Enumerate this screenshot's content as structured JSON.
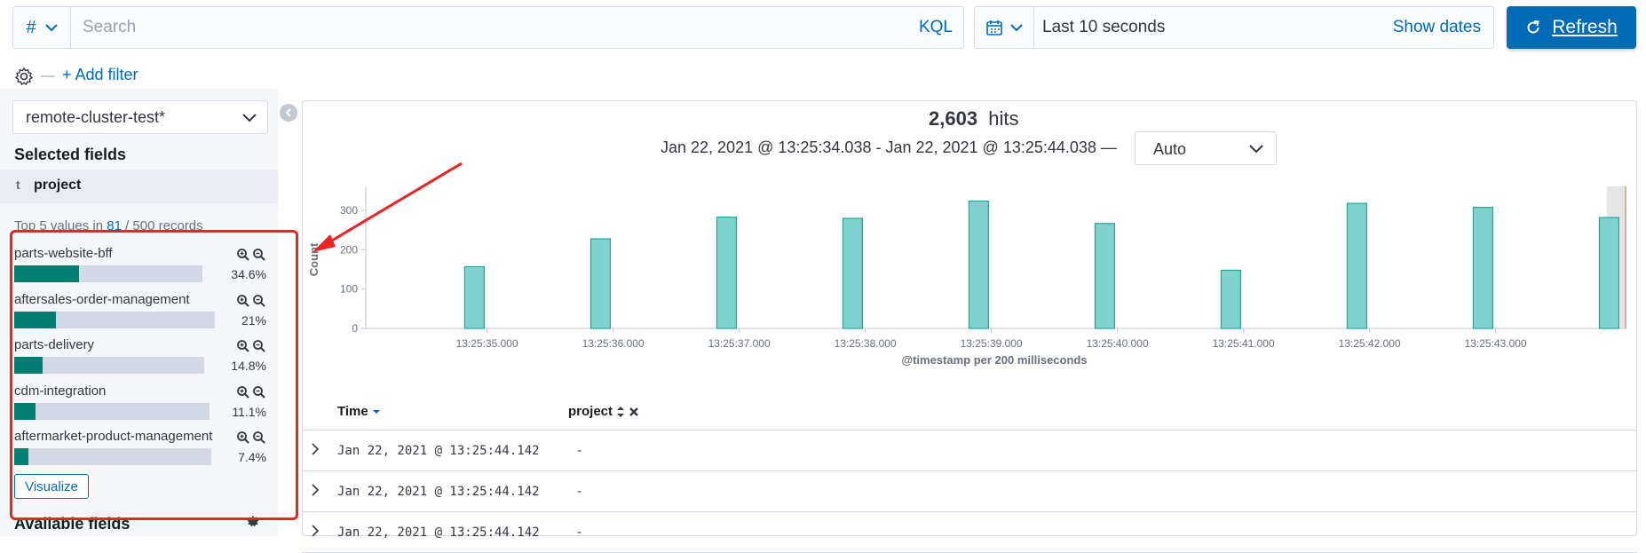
{
  "querybar": {
    "type_symbol": "#",
    "search_placeholder": "Search",
    "language": "KQL"
  },
  "datebar": {
    "label": "Last 10 seconds",
    "show_dates": "Show dates"
  },
  "refresh_button": {
    "label": "Refresh"
  },
  "filters": {
    "add_filter": "+ Add filter"
  },
  "sidebar": {
    "index_pattern": "remote-cluster-test*",
    "selected_fields_heading": "Selected fields",
    "selected_field": {
      "type": "t",
      "name": "project"
    },
    "top_values": {
      "prefix": "Top 5 values in ",
      "count": "81",
      "suffix": " / 500 records"
    },
    "values": [
      {
        "label": "parts-website-bff",
        "percent": "34.6%",
        "fraction": 0.346
      },
      {
        "label": "aftersales-order-management",
        "percent": "21%",
        "fraction": 0.21
      },
      {
        "label": "parts-delivery",
        "percent": "14.8%",
        "fraction": 0.148
      },
      {
        "label": "cdm-integration",
        "percent": "11.1%",
        "fraction": 0.111
      },
      {
        "label": "aftermarket-product-management",
        "percent": "7.4%",
        "fraction": 0.074
      }
    ],
    "visualize_label": "Visualize",
    "available_fields_heading": "Available fields"
  },
  "main": {
    "hits_count": "2,603",
    "hits_label": "hits",
    "date_range": "Jan 22, 2021 @ 13:25:34.038 - Jan 22, 2021 @ 13:25:44.038 —",
    "interval": "Auto",
    "table": {
      "headers": {
        "time": "Time",
        "project": "project"
      },
      "rows": [
        {
          "time": "Jan 22, 2021 @ 13:25:44.142",
          "project": "-"
        },
        {
          "time": "Jan 22, 2021 @ 13:25:44.142",
          "project": "-"
        },
        {
          "time": "Jan 22, 2021 @ 13:25:44.142",
          "project": "-"
        }
      ]
    }
  },
  "chart_data": {
    "type": "bar",
    "xlabel": "@timestamp per 200 milliseconds",
    "ylabel": "Count",
    "ylim": [
      0,
      350
    ],
    "yticks": [
      0,
      100,
      200,
      300
    ],
    "xticks": [
      "13:25:35.000",
      "13:25:36.000",
      "13:25:37.000",
      "13:25:38.000",
      "13:25:39.000",
      "13:25:40.000",
      "13:25:41.000",
      "13:25:42.000",
      "13:25:43.000"
    ],
    "bars": [
      {
        "t": "13:25:34.800",
        "value": 157
      },
      {
        "t": "13:25:35.800",
        "value": 228
      },
      {
        "t": "13:25:36.800",
        "value": 283
      },
      {
        "t": "13:25:37.800",
        "value": 280
      },
      {
        "t": "13:25:38.800",
        "value": 324
      },
      {
        "t": "13:25:39.800",
        "value": 267
      },
      {
        "t": "13:25:40.800",
        "value": 148
      },
      {
        "t": "13:25:41.800",
        "value": 318
      },
      {
        "t": "13:25:42.800",
        "value": 308
      },
      {
        "t": "13:25:43.800",
        "value": 282
      }
    ],
    "bar_color": "#7fd3cc",
    "bar_stroke": "#26a69a"
  }
}
